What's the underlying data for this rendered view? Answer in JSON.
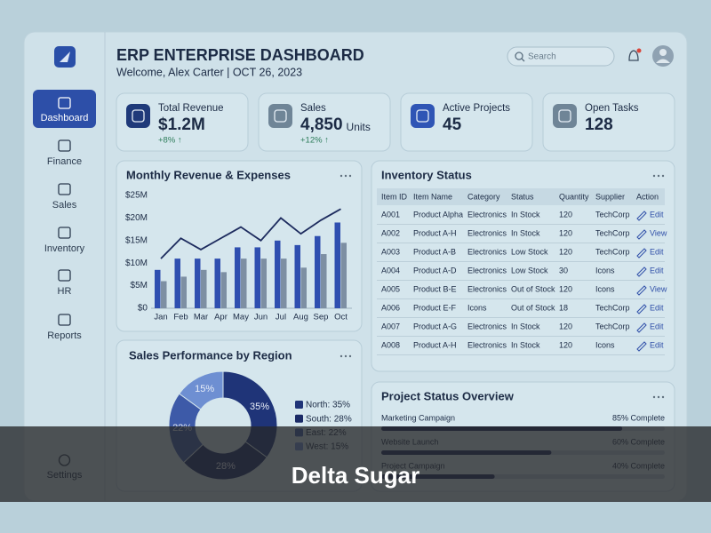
{
  "sidebar": {
    "items": [
      "Dashboard",
      "Finance",
      "Sales",
      "Inventory",
      "HR",
      "Reports"
    ],
    "settings": "Settings"
  },
  "header": {
    "title": "ERP ENTERPRISE DASHBOARD",
    "subtitle": "Welcome, Alex Carter | OCT 26, 2023",
    "search": "Search"
  },
  "kpis": [
    {
      "label": "Total Revenue",
      "value": "$1.2M",
      "change": "+8% ↑"
    },
    {
      "label": "Sales",
      "value": "4,850",
      "unit": "Units",
      "change": "+12% ↑"
    },
    {
      "label": "Active Projects",
      "value": "45"
    },
    {
      "label": "Open Tasks",
      "value": "128"
    }
  ],
  "revenue_chart": {
    "type": "bar",
    "title": "Monthly Revenue & Expenses",
    "categories": [
      "Jan",
      "Feb",
      "Mar",
      "Apr",
      "May",
      "Jun",
      "Jul",
      "Aug",
      "Sep",
      "Oct"
    ],
    "series": [
      {
        "color": "#2f4fb0",
        "values": [
          8.5,
          11,
          11,
          11,
          13.5,
          13.5,
          15,
          14,
          16,
          19
        ]
      },
      {
        "color": "#7d8fa3",
        "values": [
          6,
          7,
          8.5,
          8,
          11,
          11,
          11,
          9,
          12,
          14.5
        ]
      },
      {
        "type": "line",
        "color": "#1d2b5e",
        "values": [
          11,
          15.5,
          13,
          15.5,
          18,
          15,
          20,
          16.5,
          19.5,
          22
        ]
      }
    ],
    "ylim": [
      0,
      25
    ],
    "yticks": [
      {
        "value": 0,
        "label": "$0"
      },
      {
        "value": 5,
        "label": "$5M"
      },
      {
        "value": 10,
        "label": "$10M"
      },
      {
        "value": 15,
        "label": "$15M"
      },
      {
        "value": 20,
        "label": "$20M"
      },
      {
        "value": 25,
        "label": "$25M"
      }
    ]
  },
  "region_chart": {
    "type": "pie",
    "title": "Sales Performance by Region",
    "values": [
      35,
      28,
      22,
      15
    ],
    "value_labels": [
      "35%",
      "28%",
      "22%",
      "15%"
    ],
    "legend": [
      "North: 35%",
      "South: 28%",
      "East: 22%",
      "West: 15%"
    ],
    "colors": [
      "#1f3478",
      "#1a2a66",
      "#3d5aa8",
      "#6e8fd2"
    ]
  },
  "inventory": {
    "title": "Inventory Status",
    "columns": [
      "Item ID",
      "Item Name",
      "Category",
      "Status",
      "Quantity",
      "Supplier",
      "Action"
    ],
    "rows": [
      [
        "A001",
        "Product Alpha",
        "Electronics",
        "In Stock",
        120,
        "TechCorp",
        "Edit"
      ],
      [
        "A002",
        "Product A-H",
        "Electronics",
        "In Stock",
        120,
        "TechCorp",
        "View"
      ],
      [
        "A003",
        "Product A-B",
        "Electronics",
        "Low Stock",
        120,
        "TechCorp",
        "Edit"
      ],
      [
        "A004",
        "Product A-D",
        "Electronics",
        "Low Stock",
        30,
        "Icons",
        "Edit"
      ],
      [
        "A005",
        "Product B-E",
        "Electronics",
        "Out of Stock",
        120,
        "Icons",
        "View"
      ],
      [
        "A006",
        "Product E-F",
        "Icons",
        "Out of Stock",
        18,
        "TechCorp",
        "Edit"
      ],
      [
        "A007",
        "Product A-G",
        "Electronics",
        "In Stock",
        120,
        "TechCorp",
        "Edit"
      ],
      [
        "A008",
        "Product A-H",
        "Electronics",
        "In Stock",
        120,
        "Icons",
        "Edit"
      ]
    ]
  },
  "projects": {
    "title": "Project Status Overview",
    "items": [
      {
        "name": "Marketing Campaign",
        "progress": 85,
        "label": "85% Complete"
      },
      {
        "name": "Website Launch",
        "progress": 60,
        "label": "60% Complete"
      },
      {
        "name": "Project Campaign",
        "progress": 40,
        "label": "40% Complete"
      }
    ]
  },
  "caption": "Delta Sugar"
}
